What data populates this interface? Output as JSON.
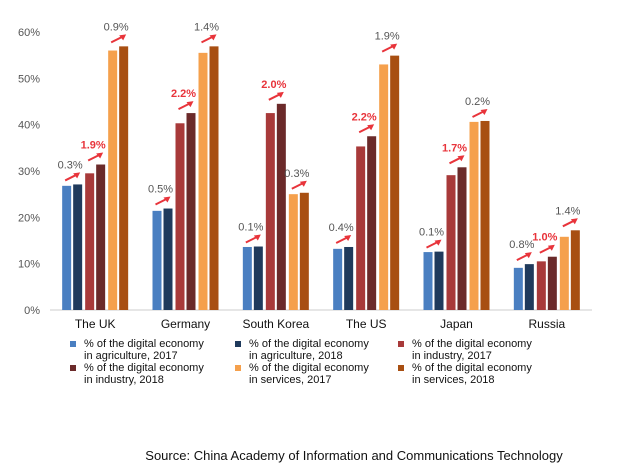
{
  "chart_data": {
    "type": "bar",
    "title": "",
    "xlabel": "",
    "ylabel": "",
    "ylim": [
      0,
      60
    ],
    "yticks": [
      "0%",
      "10%",
      "20%",
      "30%",
      "40%",
      "50%",
      "60%"
    ],
    "categories": [
      "The UK",
      "Germany",
      "South Korea",
      "The US",
      "Japan",
      "Russia"
    ],
    "series": [
      {
        "name": "% of the digital economy in agriculture, 2017",
        "color": "#4a7fc1",
        "values": [
          26.8,
          21.4,
          13.6,
          13.2,
          12.5,
          9.1
        ]
      },
      {
        "name": "% of the digital economy in agriculture, 2018",
        "color": "#1f3a5c",
        "values": [
          27.1,
          21.9,
          13.7,
          13.6,
          12.6,
          9.9
        ]
      },
      {
        "name": "% of the digital economy in industry, 2017",
        "color": "#a83a3a",
        "values": [
          29.5,
          40.3,
          42.5,
          35.3,
          29.1,
          10.5
        ]
      },
      {
        "name": "% of the digital economy in industry, 2018",
        "color": "#6b2a2a",
        "values": [
          31.4,
          42.5,
          44.5,
          37.5,
          30.8,
          11.5
        ]
      },
      {
        "name": "% of the digital economy in services, 2017",
        "color": "#f5a04c",
        "values": [
          56.0,
          55.5,
          25.0,
          53.0,
          40.6,
          15.8
        ]
      },
      {
        "name": "% of the digital economy in services, 2018",
        "color": "#a84f12",
        "values": [
          56.9,
          56.9,
          25.3,
          54.9,
          40.8,
          17.2
        ]
      }
    ],
    "annotations": [
      {
        "category": "The UK",
        "group": "agriculture",
        "label": "0.3%",
        "highlight": false
      },
      {
        "category": "The UK",
        "group": "industry",
        "label": "1.9%",
        "highlight": true
      },
      {
        "category": "The UK",
        "group": "services",
        "label": "0.9%",
        "highlight": false
      },
      {
        "category": "Germany",
        "group": "agriculture",
        "label": "0.5%",
        "highlight": false
      },
      {
        "category": "Germany",
        "group": "industry",
        "label": "2.2%",
        "highlight": true
      },
      {
        "category": "Germany",
        "group": "services",
        "label": "1.4%",
        "highlight": false
      },
      {
        "category": "South Korea",
        "group": "agriculture",
        "label": "0.1%",
        "highlight": false
      },
      {
        "category": "South Korea",
        "group": "industry",
        "label": "2.0%",
        "highlight": true
      },
      {
        "category": "South Korea",
        "group": "services",
        "label": "0.3%",
        "highlight": false
      },
      {
        "category": "The US",
        "group": "agriculture",
        "label": "0.4%",
        "highlight": false
      },
      {
        "category": "The US",
        "group": "industry",
        "label": "2.2%",
        "highlight": true
      },
      {
        "category": "The US",
        "group": "services",
        "label": "1.9%",
        "highlight": false
      },
      {
        "category": "Japan",
        "group": "agriculture",
        "label": "0.1%",
        "highlight": false
      },
      {
        "category": "Japan",
        "group": "industry",
        "label": "1.7%",
        "highlight": true
      },
      {
        "category": "Japan",
        "group": "services",
        "label": "0.2%",
        "highlight": false
      },
      {
        "category": "Russia",
        "group": "agriculture",
        "label": "0.8%",
        "highlight": false
      },
      {
        "category": "Russia",
        "group": "industry",
        "label": "1.0%",
        "highlight": true
      },
      {
        "category": "Russia",
        "group": "services",
        "label": "1.4%",
        "highlight": false
      }
    ],
    "colors": {
      "highlight_label": "#e8343b",
      "normal_label": "#555555",
      "arrow": "#e8343b",
      "axis": "#cccccc",
      "tick_label": "#555555"
    }
  },
  "legend": {
    "items": [
      {
        "line1": "% of the digital economy",
        "line2": "in agriculture, 2017",
        "color": "#4a7fc1"
      },
      {
        "line1": "% of the digital economy",
        "line2": "in agriculture, 2018",
        "color": "#1f3a5c"
      },
      {
        "line1": "% of the digital economy",
        "line2": "in industry, 2017",
        "color": "#a83a3a"
      },
      {
        "line1": "% of the digital economy",
        "line2": "in industry, 2018",
        "color": "#6b2a2a"
      },
      {
        "line1": "% of the digital economy",
        "line2": "in services, 2017",
        "color": "#f5a04c"
      },
      {
        "line1": "% of the digital economy",
        "line2": "in services, 2018",
        "color": "#a84f12"
      }
    ]
  },
  "source": "Source: China Academy of Information and Communications Technology"
}
